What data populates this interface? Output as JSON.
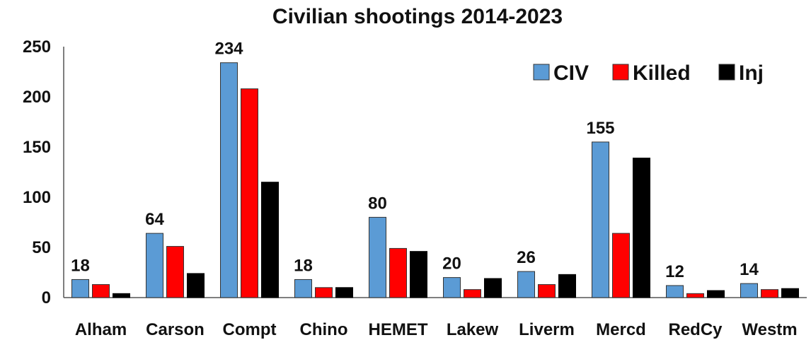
{
  "chart_data": {
    "type": "bar",
    "title": "Civilian shootings 2014-2023",
    "xlabel": "",
    "ylabel": "",
    "categories": [
      "Alham",
      "Carson",
      "Compt",
      "Chino",
      "HEMET",
      "Lakew",
      "Liverm",
      "Mercd",
      "RedCy",
      "Westm"
    ],
    "series": [
      {
        "name": "CIV",
        "color": "#5B9BD5",
        "values": [
          18,
          64,
          234,
          18,
          80,
          20,
          26,
          155,
          12,
          14
        ],
        "data_labels": [
          "18",
          "64",
          "234",
          "18",
          "80",
          "20",
          "26",
          "155",
          "12",
          "14"
        ]
      },
      {
        "name": "Killed",
        "color": "#FF0000",
        "values": [
          13,
          51,
          208,
          10,
          49,
          8,
          13,
          64,
          4,
          8
        ]
      },
      {
        "name": "Inj",
        "color": "#000000",
        "values": [
          4,
          24,
          115,
          10,
          46,
          19,
          23,
          139,
          7,
          9
        ]
      }
    ],
    "yticks": [
      "0",
      "50",
      "100",
      "150",
      "200",
      "250"
    ],
    "ylim": [
      0,
      250
    ],
    "grid": false,
    "legend_position": "top-right"
  }
}
